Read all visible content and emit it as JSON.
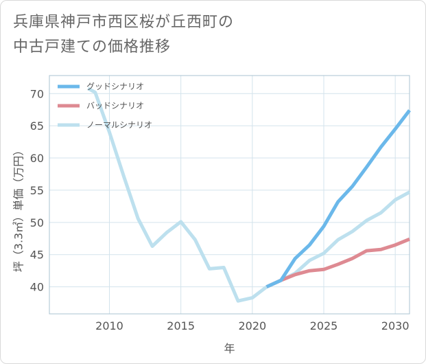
{
  "title_lines": [
    "兵庫県神戸市西区桜が丘西町の",
    "中古戸建ての価格推移"
  ],
  "colors": {
    "good": "#6bb8ea",
    "bad": "#de8a92",
    "normal": "#bde0ee",
    "grid": "#d3e3ec",
    "axis": "#aac3d0"
  },
  "chart_data": {
    "type": "line",
    "title": "兵庫県神戸市西区桜が丘西町の中古戸建ての価格推移",
    "xlabel": "年",
    "ylabel": "坪（3.3㎡）単価（万円）",
    "xlim": [
      2005.8,
      2031
    ],
    "ylim": [
      35.8,
      72.8
    ],
    "xticks": [
      2010,
      2015,
      2020,
      2025,
      2030
    ],
    "yticks": [
      40,
      45,
      50,
      55,
      60,
      65,
      70
    ],
    "grid": true,
    "legend_position": "top-left",
    "series": [
      {
        "name": "グッドシナリオ",
        "color_key": "good",
        "x": [
          2021,
          2022,
          2023,
          2024,
          2025,
          2026,
          2027,
          2028,
          2029,
          2030,
          2031
        ],
        "y": [
          40.0,
          41.0,
          44.4,
          46.5,
          49.4,
          53.2,
          55.6,
          58.6,
          61.7,
          64.5,
          67.4
        ]
      },
      {
        "name": "バッドシナリオ",
        "color_key": "bad",
        "x": [
          2021,
          2022,
          2023,
          2024,
          2025,
          2026,
          2027,
          2028,
          2029,
          2030,
          2031
        ],
        "y": [
          40.0,
          41.0,
          41.9,
          42.5,
          42.7,
          43.5,
          44.4,
          45.6,
          45.8,
          46.5,
          47.4
        ]
      },
      {
        "name": "ノーマルシナリオ",
        "color_key": "normal",
        "x": [
          2008.5,
          2009,
          2010,
          2011,
          2012,
          2013,
          2014,
          2015,
          2016,
          2017,
          2018,
          2019,
          2020,
          2021,
          2022,
          2023,
          2024,
          2025,
          2026,
          2027,
          2028,
          2029,
          2030,
          2031
        ],
        "y": [
          70.8,
          70.2,
          64.0,
          57.2,
          50.6,
          46.3,
          48.4,
          50.1,
          47.3,
          42.8,
          43.0,
          37.8,
          38.3,
          40.0,
          41.0,
          42.1,
          44.1,
          45.2,
          47.3,
          48.6,
          50.3,
          51.5,
          53.5,
          54.7
        ]
      }
    ]
  }
}
